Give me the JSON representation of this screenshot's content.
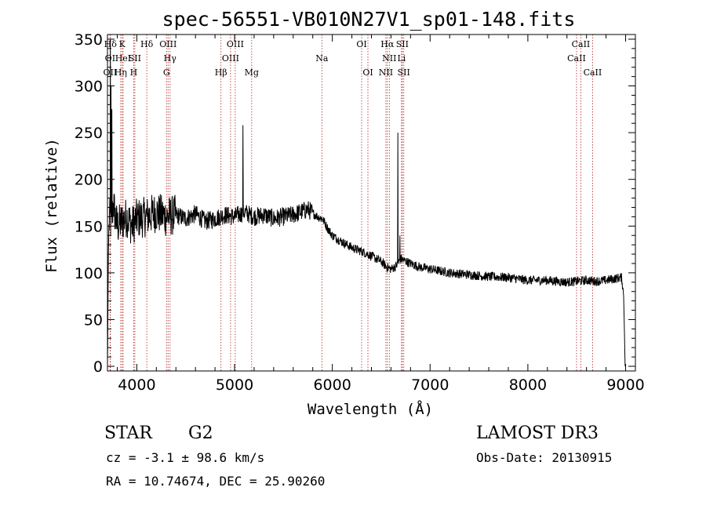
{
  "chart_data": {
    "type": "line",
    "title": "spec-56551-VB010N27V1_sp01-148.fits",
    "xlabel": "Wavelength (Å)",
    "ylabel": "Flux (relative)",
    "xlim": [
      3700,
      9100
    ],
    "ylim": [
      -5,
      355
    ],
    "xticks": [
      4000,
      5000,
      6000,
      7000,
      8000,
      9000
    ],
    "yticks": [
      0,
      50,
      100,
      150,
      200,
      250,
      300,
      350
    ],
    "spectrum_envelope": {
      "x": [
        3700,
        3705,
        3710,
        3720,
        3740,
        3760,
        3780,
        3800,
        3850,
        3900,
        3950,
        4000,
        4100,
        4200,
        4300,
        4400,
        4500,
        4600,
        4700,
        4800,
        4900,
        5000,
        5100,
        5200,
        5300,
        5400,
        5500,
        5600,
        5700,
        5750,
        5800,
        5850,
        5900,
        5950,
        6000,
        6100,
        6200,
        6300,
        6400,
        6500,
        6560,
        6600,
        6650,
        6700,
        6800,
        6900,
        7000,
        7100,
        7200,
        7400,
        7600,
        7800,
        8000,
        8200,
        8400,
        8500,
        8600,
        8700,
        8800,
        8900,
        8960,
        8980,
        8995
      ],
      "y": [
        0,
        60,
        130,
        160,
        150,
        175,
        160,
        150,
        155,
        160,
        150,
        158,
        160,
        165,
        160,
        162,
        158,
        163,
        155,
        158,
        162,
        160,
        165,
        160,
        162,
        158,
        160,
        162,
        166,
        168,
        164,
        160,
        158,
        148,
        140,
        133,
        127,
        123,
        118,
        112,
        106,
        104,
        107,
        115,
        110,
        106,
        104,
        102,
        100,
        98,
        96,
        95,
        92,
        92,
        90,
        91,
        92,
        91,
        92,
        94,
        95,
        75,
        0
      ]
    },
    "noise": [
      {
        "from": 3700,
        "to": 4400,
        "amp": 22
      },
      {
        "from": 4400,
        "to": 5800,
        "amp": 10
      },
      {
        "from": 5800,
        "to": 9000,
        "amp": 5
      }
    ],
    "spikes": [
      {
        "x": 3730,
        "y": 350
      },
      {
        "x": 3735,
        "y": 300
      },
      {
        "x": 3745,
        "y": 275
      },
      {
        "x": 5085,
        "y": 258
      },
      {
        "x": 6670,
        "y": 250
      },
      {
        "x": 6690,
        "y": 140
      }
    ],
    "lines": [
      {
        "label": "Hδ",
        "x": 3730,
        "row": 0
      },
      {
        "label": "K",
        "x": 3850,
        "row": 0
      },
      {
        "label": "Hδ",
        "x": 4102,
        "row": 0
      },
      {
        "label": "OIII",
        "x": 4320,
        "row": 0
      },
      {
        "label": "OIII",
        "x": 5007,
        "row": 0
      },
      {
        "label": "OI",
        "x": 6300,
        "row": 0
      },
      {
        "label": "Hα",
        "x": 6563,
        "row": 0
      },
      {
        "label": "SII",
        "x": 6716,
        "row": 0
      },
      {
        "label": "CaII",
        "x": 8542,
        "row": 0
      },
      {
        "label": "OI",
        "x": 3727,
        "row": 1
      },
      {
        "label": "HeI",
        "x": 3860,
        "row": 1
      },
      {
        "label": "SII",
        "x": 3980,
        "row": 1
      },
      {
        "label": "Hγ",
        "x": 4340,
        "row": 1
      },
      {
        "label": "OIII",
        "x": 4959,
        "row": 1
      },
      {
        "label": "Na",
        "x": 5893,
        "row": 1
      },
      {
        "label": "NII",
        "x": 6583,
        "row": 1
      },
      {
        "label": "Li",
        "x": 6708,
        "row": 1
      },
      {
        "label": "CaII",
        "x": 8498,
        "row": 1
      },
      {
        "label": "OII",
        "x": 3727,
        "row": 2
      },
      {
        "label": "Hη",
        "x": 3835,
        "row": 2
      },
      {
        "label": "H",
        "x": 3968,
        "row": 2
      },
      {
        "label": "G",
        "x": 4304,
        "row": 2
      },
      {
        "label": "Hβ",
        "x": 4861,
        "row": 2
      },
      {
        "label": "Mg",
        "x": 5175,
        "row": 2
      },
      {
        "label": "OI",
        "x": 6364,
        "row": 2
      },
      {
        "label": "NII",
        "x": 6548,
        "row": 2
      },
      {
        "label": "SII",
        "x": 6731,
        "row": 2
      },
      {
        "label": "CaII",
        "x": 8662,
        "row": 2
      }
    ],
    "line_markers_x": [
      3727,
      3730,
      3835,
      3850,
      3860,
      3968,
      3980,
      4102,
      4304,
      4320,
      4340,
      4861,
      4959,
      5007,
      5175,
      5893,
      6300,
      6364,
      6548,
      6563,
      6583,
      6708,
      6716,
      6731,
      8498,
      8542,
      8662
    ],
    "colors": {
      "spectrum": "#000000",
      "line_marker": "#b22222",
      "axis": "#000000"
    }
  },
  "info": {
    "object_class": "STAR",
    "subclass": "G2",
    "survey": "LAMOST DR3",
    "cz": "cz = -3.1 ± 98.6 km/s",
    "obs_date": "Obs-Date: 20130915",
    "coords": "RA =  10.74674, DEC =  25.90260"
  }
}
